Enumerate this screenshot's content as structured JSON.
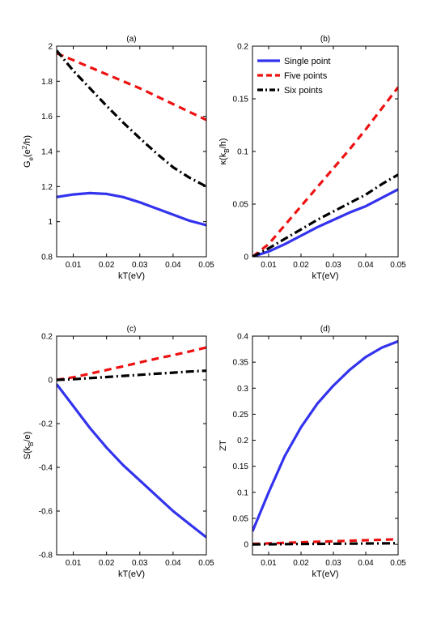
{
  "chart_data": [
    {
      "type": "line",
      "title": "(a)",
      "xlabel": "kT(eV)",
      "ylabel": "G_e(e^2/h)",
      "xlim": [
        0.005,
        0.05
      ],
      "ylim": [
        0.8,
        2.0
      ],
      "xticks": [
        0.01,
        0.02,
        0.03,
        0.04,
        0.05
      ],
      "xtick_labels": [
        "0.01",
        "0.02",
        "0.03",
        "0.04",
        "0.05"
      ],
      "yticks": [
        0.8,
        1.0,
        1.2,
        1.4,
        1.6,
        1.8,
        2.0
      ],
      "ytick_labels": [
        "0.8",
        "1",
        "1.2",
        "1.4",
        "1.6",
        "1.8",
        "2"
      ],
      "grid": false,
      "series": [
        {
          "name": "Single point",
          "color": "#3333ee",
          "style": "solid",
          "x": [
            0.005,
            0.01,
            0.015,
            0.02,
            0.025,
            0.03,
            0.035,
            0.04,
            0.045,
            0.05
          ],
          "y": [
            1.14,
            1.155,
            1.163,
            1.158,
            1.14,
            1.11,
            1.075,
            1.04,
            1.005,
            0.98
          ]
        },
        {
          "name": "Five points",
          "color": "#ee1111",
          "style": "dashed",
          "x": [
            0.005,
            0.01,
            0.015,
            0.02,
            0.025,
            0.03,
            0.035,
            0.04,
            0.045,
            0.05
          ],
          "y": [
            1.96,
            1.92,
            1.88,
            1.84,
            1.8,
            1.76,
            1.715,
            1.67,
            1.625,
            1.58
          ]
        },
        {
          "name": "Six points",
          "color": "#000000",
          "style": "dashdot",
          "x": [
            0.005,
            0.01,
            0.015,
            0.02,
            0.025,
            0.03,
            0.035,
            0.04,
            0.045,
            0.05
          ],
          "y": [
            1.975,
            1.86,
            1.76,
            1.66,
            1.565,
            1.475,
            1.39,
            1.31,
            1.25,
            1.2
          ]
        }
      ]
    },
    {
      "type": "line",
      "title": "(b)",
      "xlabel": "kT(eV)",
      "ylabel": "κ(k_B/h)",
      "xlim": [
        0.005,
        0.05
      ],
      "ylim": [
        0,
        0.2
      ],
      "xticks": [
        0.01,
        0.02,
        0.03,
        0.04,
        0.05
      ],
      "xtick_labels": [
        "0.01",
        "0.02",
        "0.03",
        "0.04",
        "0.05"
      ],
      "yticks": [
        0,
        0.05,
        0.1,
        0.15,
        0.2
      ],
      "ytick_labels": [
        "0",
        "0.05",
        "0.1",
        "0.15",
        "0.2"
      ],
      "grid": false,
      "legend": {
        "position": "top-left",
        "entries": [
          "Single point",
          "Five points",
          "Six points"
        ]
      },
      "series": [
        {
          "name": "Single point",
          "color": "#3333ee",
          "style": "solid",
          "x": [
            0.005,
            0.01,
            0.015,
            0.02,
            0.025,
            0.03,
            0.035,
            0.04,
            0.045,
            0.05
          ],
          "y": [
            0.0,
            0.005,
            0.012,
            0.02,
            0.028,
            0.035,
            0.042,
            0.048,
            0.056,
            0.064
          ]
        },
        {
          "name": "Five points",
          "color": "#ee1111",
          "style": "dashed",
          "x": [
            0.005,
            0.01,
            0.015,
            0.02,
            0.025,
            0.03,
            0.035,
            0.04,
            0.045,
            0.05
          ],
          "y": [
            0.0,
            0.012,
            0.03,
            0.048,
            0.066,
            0.084,
            0.102,
            0.121,
            0.141,
            0.161
          ]
        },
        {
          "name": "Six points",
          "color": "#000000",
          "style": "dashdot",
          "x": [
            0.005,
            0.01,
            0.015,
            0.02,
            0.025,
            0.03,
            0.035,
            0.04,
            0.045,
            0.05
          ],
          "y": [
            0.0,
            0.008,
            0.017,
            0.026,
            0.035,
            0.043,
            0.051,
            0.059,
            0.069,
            0.078
          ]
        }
      ]
    },
    {
      "type": "line",
      "title": "(c)",
      "xlabel": "kT(eV)",
      "ylabel": "S(k_B/e)",
      "xlim": [
        0.005,
        0.05
      ],
      "ylim": [
        -0.8,
        0.2
      ],
      "xticks": [
        0.01,
        0.02,
        0.03,
        0.04,
        0.05
      ],
      "xtick_labels": [
        "0.01",
        "0.02",
        "0.03",
        "0.04",
        "0.05"
      ],
      "yticks": [
        -0.8,
        -0.6,
        -0.4,
        -0.2,
        0,
        0.2
      ],
      "ytick_labels": [
        "-0.8",
        "-0.6",
        "-0.4",
        "-0.2",
        "0",
        "0.2"
      ],
      "grid": false,
      "series": [
        {
          "name": "Single point",
          "color": "#3333ee",
          "style": "solid",
          "x": [
            0.005,
            0.01,
            0.015,
            0.02,
            0.025,
            0.03,
            0.035,
            0.04,
            0.045,
            0.05
          ],
          "y": [
            -0.02,
            -0.12,
            -0.22,
            -0.31,
            -0.39,
            -0.46,
            -0.53,
            -0.6,
            -0.66,
            -0.72
          ]
        },
        {
          "name": "Five points",
          "color": "#ee1111",
          "style": "dashed",
          "x": [
            0.005,
            0.01,
            0.015,
            0.02,
            0.025,
            0.03,
            0.035,
            0.04,
            0.045,
            0.05
          ],
          "y": [
            0.0,
            0.012,
            0.028,
            0.045,
            0.062,
            0.08,
            0.097,
            0.113,
            0.13,
            0.148
          ]
        },
        {
          "name": "Six points",
          "color": "#000000",
          "style": "dashdot",
          "x": [
            0.005,
            0.01,
            0.015,
            0.02,
            0.025,
            0.03,
            0.035,
            0.04,
            0.045,
            0.05
          ],
          "y": [
            0.0,
            0.003,
            0.008,
            0.013,
            0.018,
            0.023,
            0.028,
            0.033,
            0.038,
            0.042
          ]
        }
      ]
    },
    {
      "type": "line",
      "title": "(d)",
      "xlabel": "kT(eV)",
      "ylabel": "ZT",
      "xlim": [
        0.005,
        0.05
      ],
      "ylim": [
        -0.02,
        0.4
      ],
      "xticks": [
        0.01,
        0.02,
        0.03,
        0.04,
        0.05
      ],
      "xtick_labels": [
        "0.01",
        "0.02",
        "0.03",
        "0.04",
        "0.05"
      ],
      "yticks": [
        0,
        0.05,
        0.1,
        0.15,
        0.2,
        0.25,
        0.3,
        0.35,
        0.4
      ],
      "ytick_labels": [
        "0",
        "0.05",
        "0.1",
        "0.15",
        "0.2",
        "0.25",
        "0.3",
        "0.35",
        "0.4"
      ],
      "grid": false,
      "series": [
        {
          "name": "Single point",
          "color": "#3333ee",
          "style": "solid",
          "x": [
            0.005,
            0.01,
            0.015,
            0.02,
            0.025,
            0.03,
            0.035,
            0.04,
            0.045,
            0.05
          ],
          "y": [
            0.025,
            0.1,
            0.17,
            0.225,
            0.27,
            0.305,
            0.335,
            0.36,
            0.378,
            0.39
          ]
        },
        {
          "name": "Five points",
          "color": "#ee1111",
          "style": "dashed",
          "x": [
            0.005,
            0.01,
            0.015,
            0.02,
            0.025,
            0.03,
            0.035,
            0.04,
            0.045,
            0.05
          ],
          "y": [
            0.001,
            0.002,
            0.003,
            0.004,
            0.005,
            0.006,
            0.007,
            0.008,
            0.009,
            0.01
          ]
        },
        {
          "name": "Six points",
          "color": "#000000",
          "style": "dashdot",
          "x": [
            0.005,
            0.01,
            0.015,
            0.02,
            0.025,
            0.03,
            0.035,
            0.04,
            0.045,
            0.05
          ],
          "y": [
            0.0,
            0.0003,
            0.0005,
            0.0008,
            0.001,
            0.0013,
            0.0015,
            0.0018,
            0.002,
            0.0022
          ]
        }
      ]
    }
  ]
}
